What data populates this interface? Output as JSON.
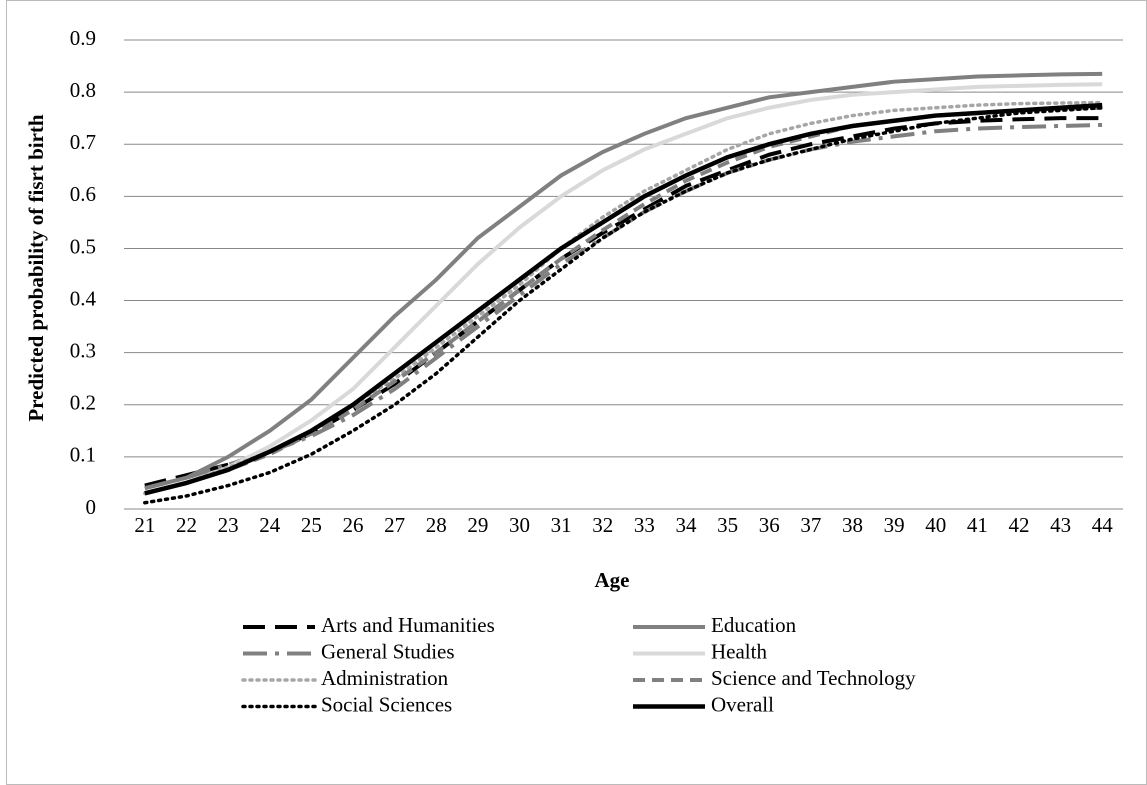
{
  "chart_data": {
    "type": "line",
    "x_label": "Age",
    "y_label": "Predicted probability of fisrt birth",
    "categories": [
      "21",
      "22",
      "23",
      "24",
      "25",
      "26",
      "27",
      "28",
      "29",
      "30",
      "31",
      "32",
      "33",
      "34",
      "35",
      "36",
      "37",
      "38",
      "39",
      "40",
      "41",
      "42",
      "43",
      "44"
    ],
    "ylim": [
      0,
      0.9
    ],
    "yticks": [
      0,
      0.1,
      0.2,
      0.3,
      0.4,
      0.5,
      0.6,
      0.7,
      0.8,
      0.9
    ],
    "grid": true,
    "legend": "bottom",
    "series": [
      {
        "name": "Arts and Humanities",
        "color": "#000000",
        "dash": "long-dash",
        "values": [
          0.045,
          0.065,
          0.085,
          0.11,
          0.145,
          0.19,
          0.24,
          0.3,
          0.36,
          0.42,
          0.48,
          0.53,
          0.575,
          0.62,
          0.65,
          0.68,
          0.7,
          0.715,
          0.73,
          0.74,
          0.745,
          0.748,
          0.75,
          0.75
        ]
      },
      {
        "name": "Education",
        "color": "#808080",
        "dash": "solid",
        "values": [
          0.04,
          0.06,
          0.1,
          0.15,
          0.21,
          0.29,
          0.37,
          0.44,
          0.52,
          0.58,
          0.64,
          0.685,
          0.72,
          0.75,
          0.77,
          0.79,
          0.8,
          0.81,
          0.82,
          0.825,
          0.83,
          0.832,
          0.834,
          0.835
        ]
      },
      {
        "name": "General Studies",
        "color": "#808080",
        "dash": "long-dash-dot",
        "values": [
          0.04,
          0.06,
          0.085,
          0.11,
          0.14,
          0.18,
          0.23,
          0.29,
          0.35,
          0.41,
          0.47,
          0.52,
          0.57,
          0.61,
          0.645,
          0.67,
          0.69,
          0.705,
          0.715,
          0.725,
          0.73,
          0.733,
          0.735,
          0.737
        ]
      },
      {
        "name": "Health",
        "color": "#d9d9d9",
        "dash": "solid",
        "values": [
          0.03,
          0.05,
          0.08,
          0.12,
          0.17,
          0.23,
          0.31,
          0.39,
          0.47,
          0.54,
          0.6,
          0.65,
          0.69,
          0.72,
          0.75,
          0.77,
          0.785,
          0.795,
          0.8,
          0.805,
          0.81,
          0.812,
          0.814,
          0.815
        ]
      },
      {
        "name": "Administration",
        "color": "#a6a6a6",
        "dash": "dot",
        "values": [
          0.03,
          0.05,
          0.08,
          0.11,
          0.15,
          0.2,
          0.25,
          0.31,
          0.37,
          0.43,
          0.5,
          0.56,
          0.61,
          0.65,
          0.69,
          0.72,
          0.74,
          0.755,
          0.765,
          0.77,
          0.775,
          0.778,
          0.779,
          0.78
        ]
      },
      {
        "name": "Science and Technology",
        "color": "#808080",
        "dash": "dash",
        "values": [
          0.03,
          0.05,
          0.075,
          0.105,
          0.145,
          0.19,
          0.245,
          0.3,
          0.36,
          0.42,
          0.48,
          0.535,
          0.585,
          0.63,
          0.665,
          0.695,
          0.715,
          0.735,
          0.745,
          0.755,
          0.76,
          0.765,
          0.768,
          0.77
        ]
      },
      {
        "name": "Social Sciences",
        "color": "#000000",
        "dash": "dot",
        "values": [
          0.012,
          0.025,
          0.045,
          0.07,
          0.105,
          0.15,
          0.2,
          0.26,
          0.33,
          0.4,
          0.46,
          0.52,
          0.57,
          0.61,
          0.645,
          0.67,
          0.69,
          0.71,
          0.725,
          0.74,
          0.75,
          0.76,
          0.765,
          0.77
        ]
      },
      {
        "name": "Overall",
        "color": "#000000",
        "dash": "solid-thick",
        "values": [
          0.03,
          0.05,
          0.075,
          0.11,
          0.15,
          0.2,
          0.26,
          0.32,
          0.38,
          0.44,
          0.5,
          0.55,
          0.6,
          0.64,
          0.675,
          0.7,
          0.72,
          0.735,
          0.745,
          0.755,
          0.76,
          0.765,
          0.77,
          0.775
        ]
      }
    ]
  }
}
